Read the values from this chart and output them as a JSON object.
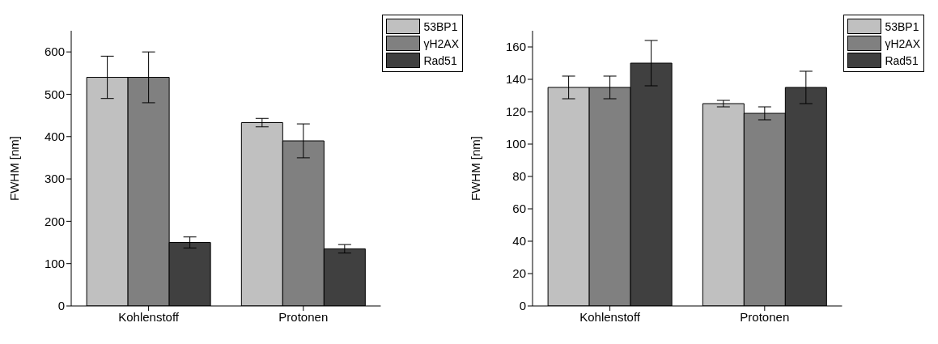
{
  "chart_data": [
    {
      "type": "bar",
      "categories": [
        "Kohlenstoff",
        "Protonen"
      ],
      "ylabel": "FWHM [nm]",
      "ylim": [
        0,
        650
      ],
      "yticks": [
        0,
        100,
        200,
        300,
        400,
        500,
        600
      ],
      "legend": "top right",
      "series": [
        {
          "name": "53BP1",
          "color": "#c0c0c0",
          "values": [
            540,
            433
          ],
          "errors": [
            [
              490,
              590
            ],
            [
              423,
              443
            ]
          ]
        },
        {
          "name": "γH2AX",
          "color": "#808080",
          "values": [
            540,
            390
          ],
          "errors": [
            [
              480,
              600
            ],
            [
              350,
              430
            ]
          ]
        },
        {
          "name": "Rad51",
          "color": "#404040",
          "values": [
            150,
            135
          ],
          "errors": [
            [
              137,
              163
            ],
            [
              125,
              145
            ]
          ]
        }
      ]
    },
    {
      "type": "bar",
      "categories": [
        "Kohlenstoff",
        "Protonen"
      ],
      "ylabel": "FWHM [nm]",
      "ylim": [
        0,
        170
      ],
      "yticks": [
        0,
        20,
        40,
        60,
        80,
        100,
        120,
        140,
        160
      ],
      "legend": "top right",
      "series": [
        {
          "name": "53BP1",
          "color": "#c0c0c0",
          "values": [
            135,
            125
          ],
          "errors": [
            [
              128,
              142
            ],
            [
              123,
              127
            ]
          ]
        },
        {
          "name": "γH2AX",
          "color": "#808080",
          "values": [
            135,
            119
          ],
          "errors": [
            [
              128,
              142
            ],
            [
              115,
              123
            ]
          ]
        },
        {
          "name": "Rad51",
          "color": "#404040",
          "values": [
            150,
            135
          ],
          "errors": [
            [
              136,
              164
            ],
            [
              125,
              145
            ]
          ]
        }
      ]
    }
  ]
}
